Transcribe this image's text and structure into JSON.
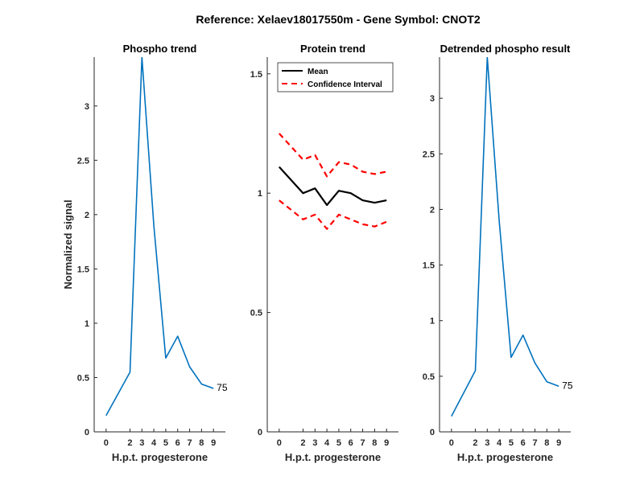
{
  "figure_title": "Reference:  Xelaev18017550m - Gene Symbol:  CNOT2",
  "colors": {
    "phospho": "#0072BD",
    "mean": "#000000",
    "ci": "#FF0000",
    "axis": "#262626"
  },
  "chart_data": [
    {
      "type": "line",
      "title": "Phospho trend",
      "xlabel": "H.p.t. progesterone",
      "ylabel": "Normalized signal",
      "xlim": [
        -1,
        10
      ],
      "ylim": [
        0,
        3.45
      ],
      "xticks": [
        0,
        2,
        3,
        4,
        5,
        6,
        7,
        8,
        9
      ],
      "xtick_labels": [
        "0",
        "2",
        "3",
        "4",
        "5",
        "6",
        "7",
        "8",
        "9"
      ],
      "yticks": [
        0,
        0.5,
        1,
        1.5,
        2,
        2.5,
        3
      ],
      "ytick_labels": [
        "0",
        "0.5",
        "1",
        "1.5",
        "2",
        "2.5",
        "3"
      ],
      "series": [
        {
          "x": [
            0,
            2,
            3,
            4,
            5,
            6,
            7,
            8,
            9
          ],
          "y": [
            0.15,
            0.55,
            3.45,
            1.9,
            0.68,
            0.88,
            0.6,
            0.44,
            0.4
          ]
        }
      ],
      "annotation": {
        "text": "75",
        "x": 9,
        "y": 0.4
      }
    },
    {
      "type": "line",
      "title": "Protein trend",
      "xlabel": "H.p.t. progesterone",
      "ylabel": "",
      "xlim": [
        -1,
        10
      ],
      "ylim": [
        0,
        1.57
      ],
      "xticks": [
        0,
        2,
        3,
        4,
        5,
        6,
        7,
        8,
        9
      ],
      "xtick_labels": [
        "0",
        "2",
        "3",
        "4",
        "5",
        "6",
        "7",
        "8",
        "9"
      ],
      "yticks": [
        0,
        0.5,
        1,
        1.5
      ],
      "ytick_labels": [
        "0",
        "0.5",
        "1",
        "1.5"
      ],
      "legend": {
        "placement": "top-left",
        "entries": [
          "Mean",
          "Confidence Interval"
        ]
      },
      "series": [
        {
          "name": "Mean",
          "x": [
            0,
            2,
            3,
            4,
            5,
            6,
            7,
            8,
            9
          ],
          "y": [
            1.11,
            1.0,
            1.02,
            0.95,
            1.01,
            1.0,
            0.97,
            0.96,
            0.97
          ]
        },
        {
          "name": "Confidence Interval",
          "x": [
            0,
            2,
            3,
            4,
            5,
            6,
            7,
            8,
            9
          ],
          "y": [
            1.25,
            1.14,
            1.16,
            1.07,
            1.13,
            1.12,
            1.09,
            1.08,
            1.09
          ]
        },
        {
          "name": "Confidence Interval",
          "x": [
            0,
            2,
            3,
            4,
            5,
            6,
            7,
            8,
            9
          ],
          "y": [
            0.97,
            0.89,
            0.91,
            0.85,
            0.91,
            0.89,
            0.87,
            0.86,
            0.88
          ]
        }
      ]
    },
    {
      "type": "line",
      "title": "Detrended phospho result",
      "xlabel": "H.p.t. progesterone",
      "ylabel": "",
      "xlim": [
        -1,
        10
      ],
      "ylim": [
        0,
        3.37
      ],
      "xticks": [
        0,
        2,
        3,
        4,
        5,
        6,
        7,
        8,
        9
      ],
      "xtick_labels": [
        "0",
        "2",
        "3",
        "4",
        "5",
        "6",
        "7",
        "8",
        "9"
      ],
      "yticks": [
        0,
        0.5,
        1,
        1.5,
        2,
        2.5,
        3
      ],
      "ytick_labels": [
        "0",
        "0.5",
        "1",
        "1.5",
        "2",
        "2.5",
        "3"
      ],
      "series": [
        {
          "x": [
            0,
            2,
            3,
            4,
            5,
            6,
            7,
            8,
            9
          ],
          "y": [
            0.14,
            0.55,
            3.37,
            1.9,
            0.67,
            0.87,
            0.62,
            0.45,
            0.41
          ]
        }
      ],
      "annotation": {
        "text": "75",
        "x": 9,
        "y": 0.41
      }
    }
  ]
}
